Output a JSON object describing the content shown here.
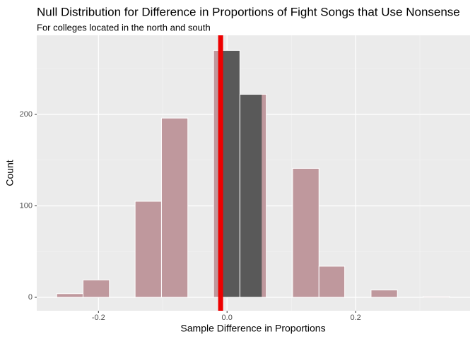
{
  "chart_data": {
    "type": "histogram",
    "title": "Null Distribution for Difference in Proportions of Fight Songs that Use Nonsense",
    "subtitle": "For colleges located in the north and south",
    "x_label": "Sample Difference in Proportions",
    "y_label": "Count",
    "bins": [
      -0.265,
      -0.224,
      -0.183,
      -0.143,
      -0.102,
      -0.061,
      -0.021,
      0.02,
      0.061,
      0.102,
      0.143,
      0.183,
      0.224,
      0.265,
      0.305,
      0.346
    ],
    "values": [
      4,
      19,
      0,
      105,
      196,
      0,
      270,
      222,
      0,
      141,
      34,
      0,
      8,
      0,
      1
    ],
    "color": "#595959",
    "shade_color": "#bf989d",
    "obs_stat": -0.01,
    "obs_color": "#ee0000",
    "shade_limits": [
      -0.01,
      0.054
    ],
    "xlim": [
      -0.296,
      0.378
    ],
    "ylim": [
      -14.7,
      286.5
    ],
    "xticks": [
      -0.2,
      {
        "value": 0,
        "label": "0.0"
      },
      0.2
    ],
    "yticks": [
      0,
      100,
      200
    ],
    "grid": true
  }
}
